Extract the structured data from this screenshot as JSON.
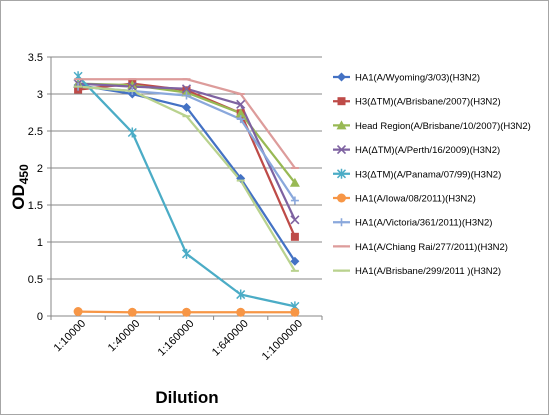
{
  "chart_data": {
    "type": "line",
    "xlabel": "Dilution",
    "ylabel_main": "OD",
    "ylabel_sub": "450",
    "categories": [
      "1:10000",
      "1:40000",
      "1:160000",
      "1:640000",
      "1:1000000"
    ],
    "ylim": [
      0,
      3.5
    ],
    "yticks": [
      "0",
      "0.5",
      "1",
      "1.5",
      "2",
      "2.5",
      "3",
      "3.5"
    ],
    "grid": "horizontal",
    "legend_position": "right",
    "series": [
      {
        "name": "HA1(A/Wyoming/3/03)(H3N2)",
        "color": "#4472c4",
        "marker": "diamond",
        "values": [
          3.12,
          3.0,
          2.82,
          1.86,
          0.74
        ]
      },
      {
        "name": "H3(ΔTM)(A/Brisbane/2007)(H3N2)",
        "color": "#be4b48",
        "marker": "square",
        "values": [
          3.06,
          3.14,
          3.05,
          2.74,
          1.07
        ]
      },
      {
        "name": "Head Region(A/Brisbane/10/2007)(H3N2)",
        "color": "#98b954",
        "marker": "triangle",
        "values": [
          3.14,
          3.12,
          3.02,
          2.74,
          1.8
        ]
      },
      {
        "name": "HA(ΔTM)(A/Perth/16/2009)(H3N2)",
        "color": "#7e62a1",
        "marker": "x",
        "values": [
          3.14,
          3.1,
          3.07,
          2.86,
          1.3
        ]
      },
      {
        "name": "H3(ΔTM)(A/Panama/07/99)(H3N2)",
        "color": "#4bacc6",
        "marker": "star",
        "values": [
          3.24,
          2.48,
          0.84,
          0.29,
          0.13
        ]
      },
      {
        "name": "HA1(A/Iowa/08/2011)(H3N2)",
        "color": "#f79646",
        "marker": "circle",
        "values": [
          0.06,
          0.05,
          0.05,
          0.05,
          0.05
        ]
      },
      {
        "name": "HA1(A/Victoria/361/2011)(H3N2)",
        "color": "#8aa8dc",
        "marker": "plus",
        "values": [
          3.1,
          3.04,
          2.98,
          2.66,
          1.56
        ]
      },
      {
        "name": "HA1(A/Chiang Rai/277/2011)(H3N2)",
        "color": "#dd9c9b",
        "marker": "dash",
        "values": [
          3.2,
          3.2,
          3.2,
          3.0,
          2.0
        ]
      },
      {
        "name": "HA1(A/Brisbane/299/2011 )(H3N2)",
        "color": "#b9d28e",
        "marker": "dash",
        "values": [
          3.1,
          3.04,
          2.7,
          1.83,
          0.61
        ]
      }
    ]
  }
}
